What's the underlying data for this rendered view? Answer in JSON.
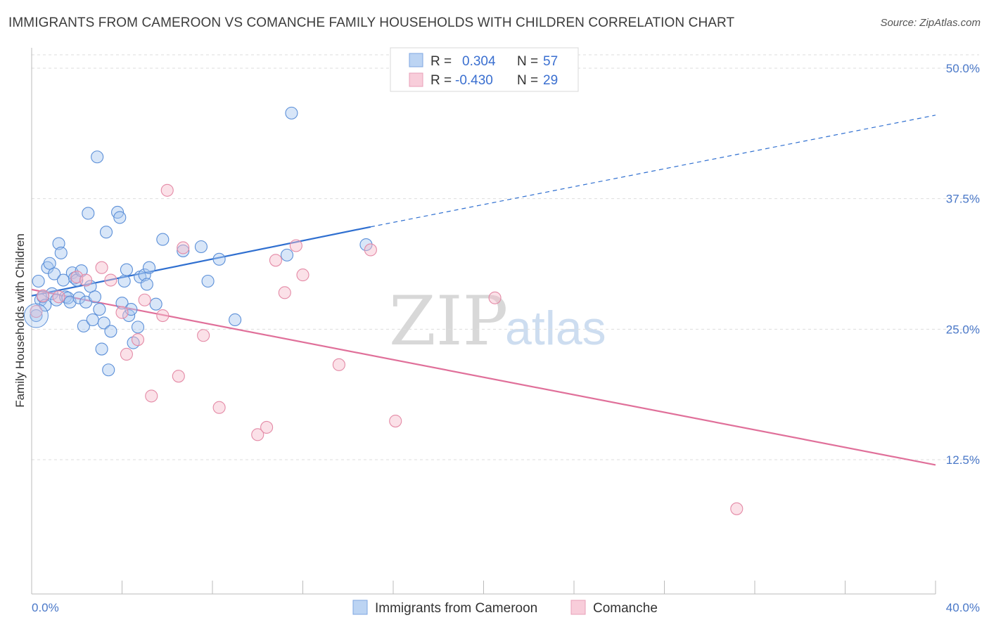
{
  "header": {
    "title": "IMMIGRANTS FROM CAMEROON VS COMANCHE FAMILY HOUSEHOLDS WITH CHILDREN CORRELATION CHART",
    "source": "Source: ZipAtlas.com"
  },
  "watermark": {
    "zip": "ZIP",
    "atlas": "atlas"
  },
  "legend_top": {
    "rows": [
      {
        "r_label": "R =",
        "r_value": "0.304",
        "n_label": "N =",
        "n_value": "57"
      },
      {
        "r_label": "R =",
        "r_value": "-0.430",
        "n_label": "N =",
        "n_value": "29"
      }
    ]
  },
  "legend_bottom": {
    "items": [
      "Immigrants from Cameroon",
      "Comanche"
    ]
  },
  "colors": {
    "blue_fill": "#a9c8f0",
    "blue_stroke": "#5b8fd8",
    "blue_line": "#2f6fd0",
    "pink_fill": "#f6bccd",
    "pink_stroke": "#e48aa6",
    "pink_line": "#e0709a",
    "grid": "#dddddd",
    "tick_text": "#4a78c8"
  },
  "chart_data": {
    "type": "scatter",
    "title": "IMMIGRANTS FROM CAMEROON VS COMANCHE FAMILY HOUSEHOLDS WITH CHILDREN CORRELATION CHART",
    "xlabel": "",
    "ylabel": "Family Households with Children",
    "xlim": [
      0,
      40
    ],
    "ylim": [
      0,
      50
    ],
    "x_tick_labels": [
      "0.0%",
      "40.0%"
    ],
    "y_ticks": [
      12.5,
      25.0,
      37.5,
      50.0
    ],
    "y_tick_labels": [
      "12.5%",
      "25.0%",
      "37.5%",
      "50.0%"
    ],
    "grid": true,
    "legend_position": "top-center",
    "series": [
      {
        "name": "Immigrants from Cameroon",
        "r": 0.304,
        "n": 57,
        "trend": {
          "x": [
            0,
            15.0
          ],
          "y": [
            28.2,
            34.8
          ],
          "extended_x": [
            15.0,
            40
          ],
          "extended_y": [
            34.8,
            45.5
          ]
        },
        "points": [
          [
            0.3,
            29.6
          ],
          [
            0.4,
            27.8
          ],
          [
            0.5,
            28.1
          ],
          [
            0.6,
            27.3
          ],
          [
            0.7,
            30.9
          ],
          [
            0.8,
            31.3
          ],
          [
            0.9,
            28.4
          ],
          [
            1.0,
            30.3
          ],
          [
            1.1,
            27.8
          ],
          [
            1.2,
            33.2
          ],
          [
            1.3,
            32.3
          ],
          [
            1.4,
            29.7
          ],
          [
            1.5,
            28.1
          ],
          [
            1.6,
            28.0
          ],
          [
            1.7,
            27.6
          ],
          [
            1.8,
            30.4
          ],
          [
            1.9,
            29.9
          ],
          [
            2.0,
            29.7
          ],
          [
            2.1,
            28.0
          ],
          [
            2.2,
            30.6
          ],
          [
            2.3,
            25.3
          ],
          [
            2.4,
            27.6
          ],
          [
            2.5,
            36.1
          ],
          [
            2.6,
            29.1
          ],
          [
            2.7,
            25.9
          ],
          [
            2.8,
            28.1
          ],
          [
            2.9,
            41.5
          ],
          [
            3.0,
            26.9
          ],
          [
            3.1,
            23.1
          ],
          [
            3.2,
            25.6
          ],
          [
            3.3,
            34.3
          ],
          [
            3.4,
            21.1
          ],
          [
            3.5,
            24.8
          ],
          [
            3.8,
            36.2
          ],
          [
            3.9,
            35.7
          ],
          [
            4.0,
            27.5
          ],
          [
            4.1,
            29.6
          ],
          [
            4.2,
            30.7
          ],
          [
            4.3,
            26.3
          ],
          [
            4.4,
            26.9
          ],
          [
            4.5,
            23.7
          ],
          [
            4.7,
            25.2
          ],
          [
            4.8,
            30.0
          ],
          [
            5.0,
            30.2
          ],
          [
            5.1,
            29.3
          ],
          [
            5.2,
            30.9
          ],
          [
            5.5,
            27.4
          ],
          [
            5.8,
            33.6
          ],
          [
            6.7,
            32.5
          ],
          [
            7.5,
            32.9
          ],
          [
            7.8,
            29.6
          ],
          [
            8.3,
            31.7
          ],
          [
            9.0,
            25.9
          ],
          [
            11.3,
            32.1
          ],
          [
            11.5,
            45.7
          ],
          [
            14.8,
            33.1
          ],
          [
            0.2,
            26.3
          ]
        ]
      },
      {
        "name": "Comanche",
        "r": -0.43,
        "n": 29,
        "trend": {
          "x": [
            0,
            40
          ],
          "y": [
            28.8,
            12.0
          ]
        },
        "points": [
          [
            0.2,
            26.7
          ],
          [
            0.5,
            28.2
          ],
          [
            1.2,
            28.1
          ],
          [
            2.0,
            30.0
          ],
          [
            2.4,
            29.7
          ],
          [
            3.1,
            30.9
          ],
          [
            3.5,
            29.7
          ],
          [
            4.0,
            26.6
          ],
          [
            4.2,
            22.6
          ],
          [
            4.7,
            24.0
          ],
          [
            5.0,
            27.8
          ],
          [
            5.3,
            18.6
          ],
          [
            5.8,
            26.3
          ],
          [
            6.0,
            38.3
          ],
          [
            6.5,
            20.5
          ],
          [
            6.7,
            32.8
          ],
          [
            7.6,
            24.4
          ],
          [
            8.3,
            17.5
          ],
          [
            10.0,
            14.9
          ],
          [
            10.4,
            15.6
          ],
          [
            10.8,
            31.6
          ],
          [
            11.2,
            28.5
          ],
          [
            11.7,
            33.0
          ],
          [
            12.0,
            30.2
          ],
          [
            13.6,
            21.6
          ],
          [
            15.0,
            32.6
          ],
          [
            16.1,
            16.2
          ],
          [
            20.5,
            28.0
          ],
          [
            31.2,
            7.8
          ]
        ]
      }
    ]
  }
}
